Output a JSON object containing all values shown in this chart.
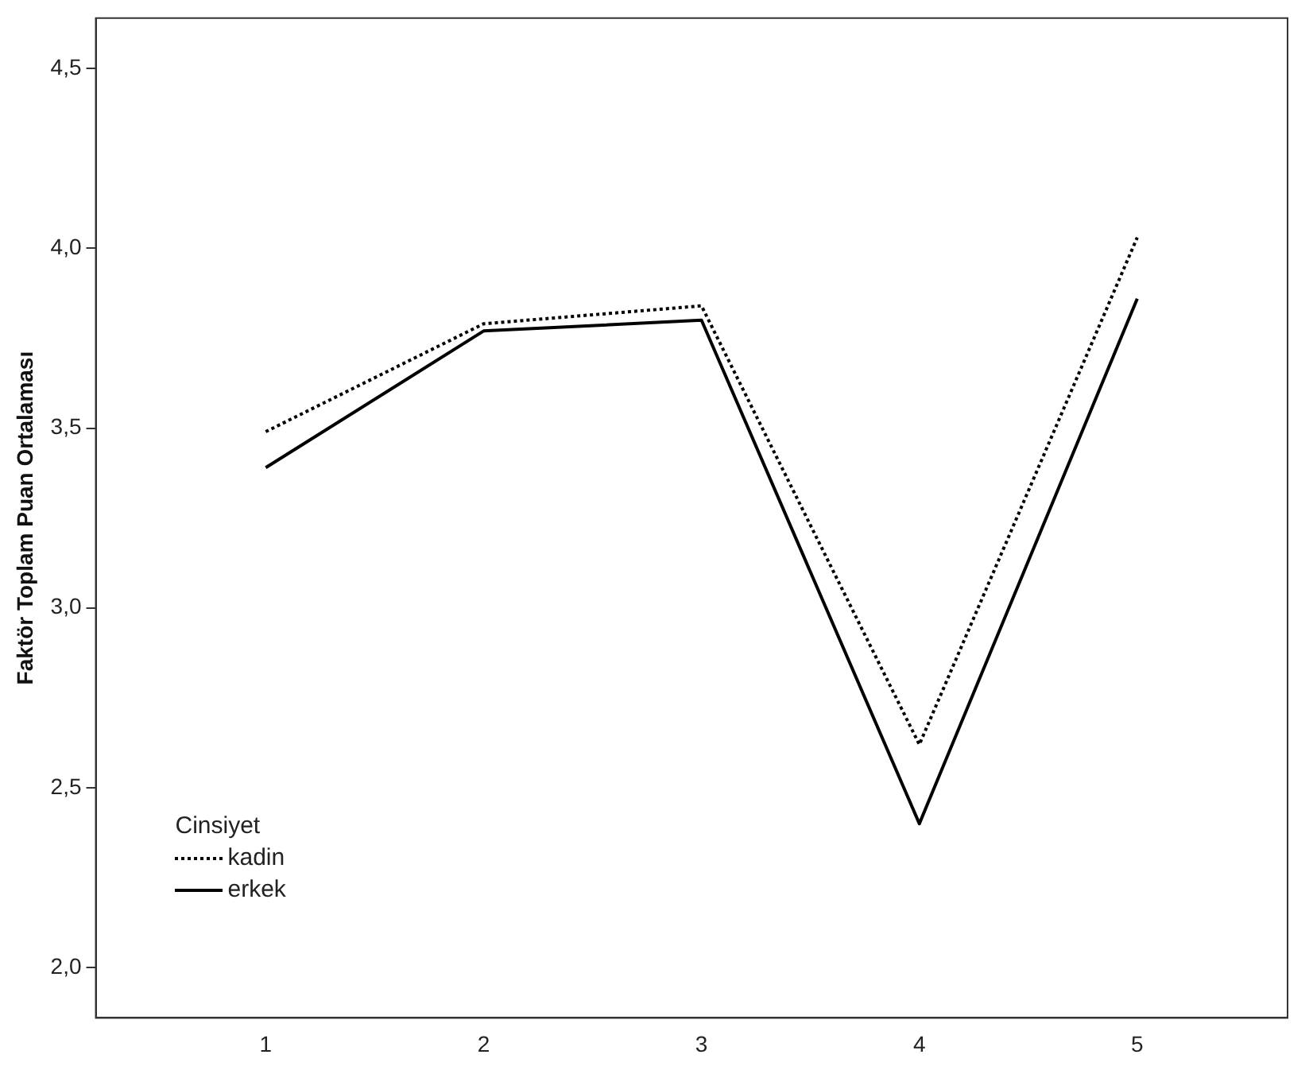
{
  "chart_data": {
    "type": "line",
    "ylabel": "Faktör Toplam Puan Ortalaması",
    "legend_title": "Cinsiyet",
    "legend": "bottom left",
    "grid": false,
    "marker": "none",
    "x": [
      1,
      2,
      3,
      4,
      5
    ],
    "xlim": [
      0.22,
      5.69
    ],
    "xticks": [
      1,
      2,
      3,
      4,
      5
    ],
    "ylim": [
      1.86,
      4.64
    ],
    "yticks": [
      {
        "value": 2.0,
        "label": "2,0"
      },
      {
        "value": 2.5,
        "label": "2,5"
      },
      {
        "value": 3.0,
        "label": "3,0"
      },
      {
        "value": 3.5,
        "label": "3,5"
      },
      {
        "value": 4.0,
        "label": "4,0"
      },
      {
        "value": 4.5,
        "label": "4,5"
      }
    ],
    "series": [
      {
        "name": "kadin",
        "color": "#000000",
        "line_style": "dotted",
        "values": [
          3.49,
          3.79,
          3.84,
          2.62,
          4.03
        ]
      },
      {
        "name": "erkek",
        "color": "#000000",
        "line_style": "solid",
        "values": [
          3.39,
          3.77,
          3.8,
          2.4,
          3.86
        ]
      }
    ]
  }
}
